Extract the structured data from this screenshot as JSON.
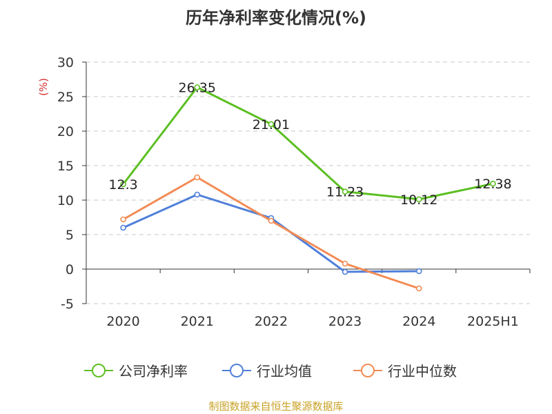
{
  "title": "历年净利率变化情况(%)",
  "source_note": "制图数据来自恒生聚源数据库",
  "chart_data": {
    "type": "line",
    "title": "历年净利率变化情况(%)",
    "ylabel": "(%)",
    "xlabel": "",
    "categories": [
      "2020",
      "2021",
      "2022",
      "2023",
      "2024",
      "2025H1"
    ],
    "ylim": [
      -5,
      30
    ],
    "yticks": [
      30,
      25,
      20,
      15,
      10,
      5,
      0,
      -5
    ],
    "grid": true,
    "legend_position": "bottom",
    "series": [
      {
        "name": "公司净利率",
        "color": "#5bbf21",
        "values": [
          12.3,
          26.35,
          21.01,
          11.23,
          10.12,
          12.38
        ],
        "labels": [
          "12.3",
          "26.35",
          "21.01",
          "11.23",
          "10.12",
          "12.38"
        ],
        "show_labels": true
      },
      {
        "name": "行业均值",
        "color": "#4f7fd9",
        "values": [
          6.0,
          10.8,
          7.4,
          -0.4,
          -0.3,
          null
        ],
        "show_labels": false
      },
      {
        "name": "行业中位数",
        "color": "#f28b54",
        "values": [
          7.2,
          13.3,
          7.0,
          0.8,
          -2.8,
          null
        ],
        "show_labels": false
      }
    ]
  }
}
